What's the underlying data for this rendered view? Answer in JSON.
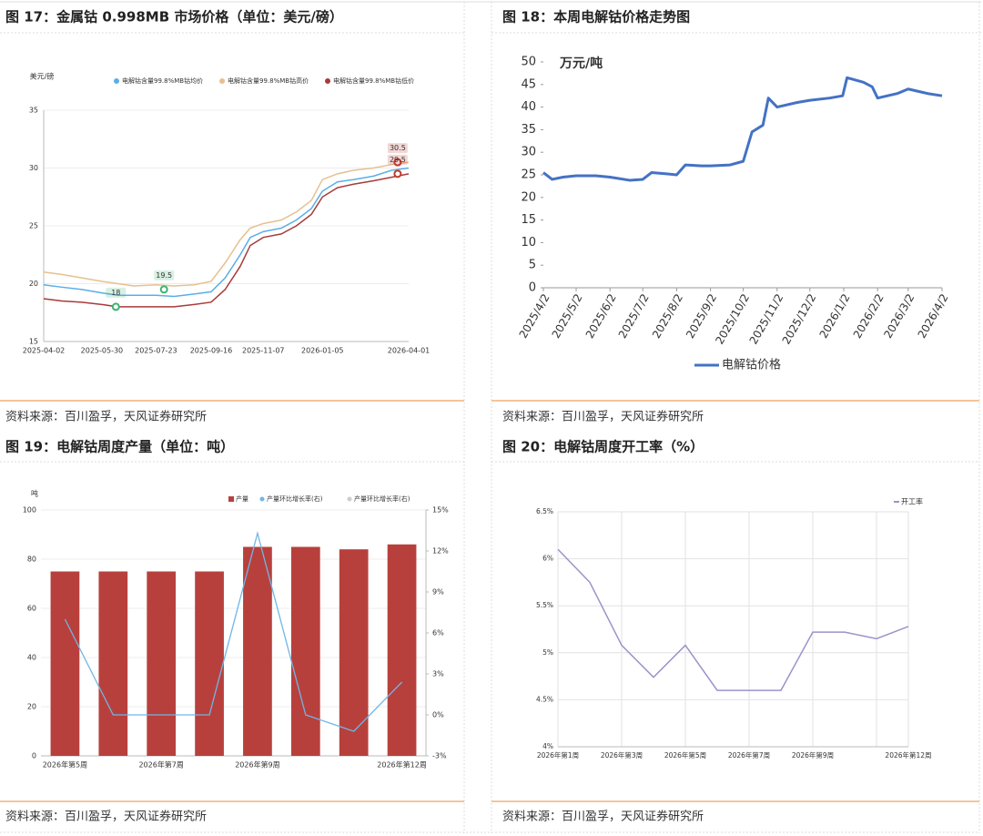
{
  "chart_data": [
    {
      "type": "line",
      "title": "图 17：金属钴 0.998MB 市场价格（单位：美元/磅）",
      "source": "资料来源：百川盈孚，天风证券研究所",
      "y_label": "美元/磅",
      "x": [
        "2025-04-02",
        "2025-04-20",
        "2025-05-10",
        "2025-05-30",
        "2025-06-15",
        "2025-07-01",
        "2025-07-23",
        "2025-08-10",
        "2025-08-30",
        "2025-09-16",
        "2025-09-30",
        "2025-10-15",
        "2025-10-25",
        "2025-11-07",
        "2025-11-25",
        "2025-12-10",
        "2025-12-25",
        "2026-01-05",
        "2026-01-20",
        "2026-02-05",
        "2026-02-25",
        "2026-03-15",
        "2026-04-01"
      ],
      "series": [
        {
          "name": "电解钴含量99.8%MB钴均价",
          "color": "#5aaee8",
          "values": [
            19.9,
            19.7,
            19.5,
            19.2,
            19.0,
            19.0,
            19.0,
            18.9,
            19.1,
            19.3,
            20.5,
            22.5,
            24.0,
            24.5,
            24.8,
            25.5,
            26.5,
            28.0,
            28.8,
            29.0,
            29.3,
            29.8,
            30.0
          ]
        },
        {
          "name": "电解钴含量99.8%MB钴高价",
          "color": "#e6c08f",
          "values": [
            21.0,
            20.8,
            20.5,
            20.2,
            20.0,
            19.8,
            19.9,
            19.8,
            19.9,
            20.2,
            21.8,
            23.8,
            24.8,
            25.2,
            25.5,
            26.2,
            27.2,
            29.0,
            29.5,
            29.8,
            30.0,
            30.3,
            30.5
          ]
        },
        {
          "name": "电解钴含量99.8%MB钴低价",
          "color": "#a93a3a",
          "values": [
            18.7,
            18.5,
            18.4,
            18.2,
            18.0,
            18.0,
            18.0,
            18.0,
            18.2,
            18.4,
            19.5,
            21.5,
            23.3,
            24.0,
            24.3,
            25.0,
            26.0,
            27.5,
            28.3,
            28.6,
            28.9,
            29.2,
            29.5
          ]
        }
      ],
      "annotations": [
        {
          "x": "2025-06-13",
          "value": 18,
          "color": "#3cb371"
        },
        {
          "x": "2025-07-31",
          "value": 19.5,
          "color": "#3cb371"
        },
        {
          "x": "2026-03-21",
          "value": 30.5,
          "color": "#c0392b"
        },
        {
          "x": "2026-03-21",
          "value": 29.5,
          "color": "#c0392b"
        }
      ],
      "xlim": [
        "2025-04-02",
        "2026-04-01"
      ],
      "xticks": [
        "2025-04-02",
        "2025-05-30",
        "2025-07-23",
        "2025-09-16",
        "2025-11-07",
        "2026-01-05",
        "2026-04-01"
      ],
      "ylim": [
        15,
        35
      ],
      "yticks": [
        15,
        20,
        25,
        30,
        35
      ],
      "grid": true
    },
    {
      "type": "line",
      "title": "图 18：本周电解钴价格走势图",
      "source": "资料来源：百川盈孚，天风证券研究所",
      "y_label": "万元/吨",
      "x": [
        "2025/4/2",
        "2025/4/10",
        "2025/4/20",
        "2025/5/2",
        "2025/5/20",
        "2025/6/2",
        "2025/6/20",
        "2025/7/2",
        "2025/7/10",
        "2025/7/25",
        "2025/8/2",
        "2025/8/10",
        "2025/8/25",
        "2025/9/2",
        "2025/9/20",
        "2025/10/2",
        "2025/10/10",
        "2025/10/20",
        "2025/10/25",
        "2025/11/2",
        "2025/11/20",
        "2025/12/2",
        "2025/12/20",
        "2026/1/1",
        "2026/1/5",
        "2026/1/20",
        "2026/1/28",
        "2026/2/2",
        "2026/2/20",
        "2026/3/2",
        "2026/3/20",
        "2026/4/2"
      ],
      "series": [
        {
          "name": "电解钴价格",
          "color": "#4472c4",
          "values": [
            25.5,
            24,
            24.5,
            24.8,
            24.8,
            24.5,
            23.8,
            24,
            25.5,
            25.2,
            25,
            27.2,
            27,
            27,
            27.2,
            28,
            34.5,
            36,
            42,
            40,
            41,
            41.5,
            42,
            42.5,
            46.5,
            45.5,
            44.5,
            42,
            43,
            44,
            43,
            42.5
          ]
        }
      ],
      "xlim": [
        "2025/4/2",
        "2026/4/2"
      ],
      "xticks": [
        "2025/4/2",
        "2025/5/2",
        "2025/6/2",
        "2025/7/2",
        "2025/8/2",
        "2025/9/2",
        "2025/10/2",
        "2025/11/2",
        "2025/12/2",
        "2026/1/2",
        "2026/2/2",
        "2026/3/2",
        "2026/4/2"
      ],
      "ylim": [
        0,
        50
      ],
      "yticks": [
        0,
        5,
        10,
        15,
        20,
        25,
        30,
        35,
        40,
        45,
        50
      ],
      "legend": "bottom"
    },
    {
      "type": "bar",
      "title": "图 19：电解钴周度产量（单位：吨）",
      "source": "资料来源：百川盈孚，天风证券研究所",
      "y_label": "吨",
      "categories": [
        "2026年第5周",
        null,
        "2026年第7周",
        null,
        "2026年第9周",
        null,
        null,
        "2026年第12周"
      ],
      "series": [
        {
          "name": "产量",
          "color": "#b8403c",
          "values": [
            75,
            75,
            75,
            75,
            85,
            85,
            84,
            86
          ]
        },
        {
          "name": "产量环比增长率(右)",
          "color": "#6fb6e6",
          "axis": "y2",
          "values": [
            7,
            0,
            0,
            0,
            13.3,
            0,
            -1.2,
            2.4
          ]
        },
        {
          "name": "产量环比增长率(右)",
          "color": "#cccccc",
          "axis": "y2",
          "hidden": true,
          "values": [
            null,
            null,
            null,
            null,
            null,
            null,
            null,
            null
          ]
        }
      ],
      "ylim": [
        0,
        100
      ],
      "yticks": [
        0,
        20,
        40,
        60,
        80,
        100
      ],
      "y2lim": [
        -3,
        15
      ],
      "y2ticks": [
        {
          "value": -3,
          "label": "-3%"
        },
        {
          "value": 0,
          "label": "0%"
        },
        {
          "value": 3,
          "label": "3%"
        },
        {
          "value": 6,
          "label": "6%"
        },
        {
          "value": 9,
          "label": "9%"
        },
        {
          "value": 12,
          "label": "12%"
        },
        {
          "value": 15,
          "label": "15%"
        }
      ],
      "grid": true
    },
    {
      "type": "line",
      "title": "图 20：电解钴周度开工率（%）",
      "source": "资料来源：百川盈孚，天风证券研究所",
      "categories": [
        "2026年第1周",
        null,
        "2026年第3周",
        null,
        "2026年第5周",
        null,
        "2026年第7周",
        null,
        "2026年第9周",
        null,
        null,
        "2026年第12周"
      ],
      "series": [
        {
          "name": "开工率",
          "color": "#9b93c9",
          "values": [
            6.1,
            5.75,
            5.08,
            4.74,
            5.08,
            4.6,
            4.6,
            4.6,
            5.22,
            5.22,
            5.15,
            5.28
          ]
        }
      ],
      "ylim": [
        4,
        6.5
      ],
      "yticks": [
        {
          "value": 4,
          "label": "4%"
        },
        {
          "value": 4.5,
          "label": "4.5%"
        },
        {
          "value": 5,
          "label": "5%"
        },
        {
          "value": 5.5,
          "label": "5.5%"
        },
        {
          "value": 6,
          "label": "6%"
        },
        {
          "value": 6.5,
          "label": "6.5%"
        }
      ],
      "grid": true
    }
  ]
}
